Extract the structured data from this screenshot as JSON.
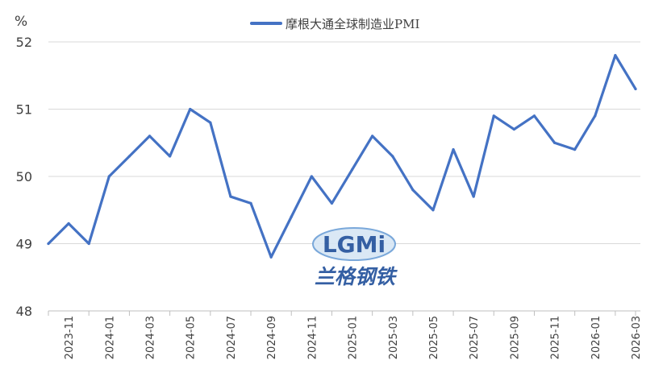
{
  "chart_data": {
    "type": "line",
    "title": "",
    "xlabel": "",
    "ylabel": "",
    "y_unit": "%",
    "ylim": [
      48,
      52
    ],
    "yticks": [
      48,
      49,
      50,
      51,
      52
    ],
    "grid": true,
    "legend_position": "top-center",
    "x": [
      "2023-10",
      "2023-11",
      "2023-12",
      "2024-01",
      "2024-02",
      "2024-03",
      "2024-04",
      "2024-05",
      "2024-06",
      "2024-07",
      "2024-08",
      "2024-09",
      "2024-10",
      "2024-11",
      "2024-12",
      "2025-01",
      "2025-02",
      "2025-03",
      "2025-04",
      "2025-05",
      "2025-06",
      "2025-07",
      "2025-08",
      "2025-09",
      "2025-10",
      "2025-11",
      "2025-12",
      "2026-01",
      "2026-02",
      "2026-03"
    ],
    "x_tick_labels": [
      "2023-11",
      "2024-01",
      "2024-03",
      "2024-05",
      "2024-07",
      "2024-09",
      "2024-11",
      "2025-01",
      "2025-03",
      "2025-05",
      "2025-07",
      "2025-09",
      "2025-11",
      "2026-01",
      "2026-03"
    ],
    "series": [
      {
        "name": "摩根大通全球制造业PMI",
        "color": "#4472c4",
        "values": [
          49.0,
          49.3,
          49.0,
          50.0,
          50.3,
          50.6,
          50.3,
          51.0,
          50.8,
          49.7,
          49.6,
          48.8,
          49.4,
          50.0,
          49.6,
          50.1,
          50.6,
          50.3,
          49.8,
          49.5,
          50.4,
          49.7,
          50.9,
          50.7,
          50.9,
          50.5,
          50.4,
          50.9,
          51.8,
          51.3
        ]
      }
    ]
  },
  "watermark": {
    "logo_text": "LGMi",
    "brand_cn": "兰格钢铁"
  }
}
